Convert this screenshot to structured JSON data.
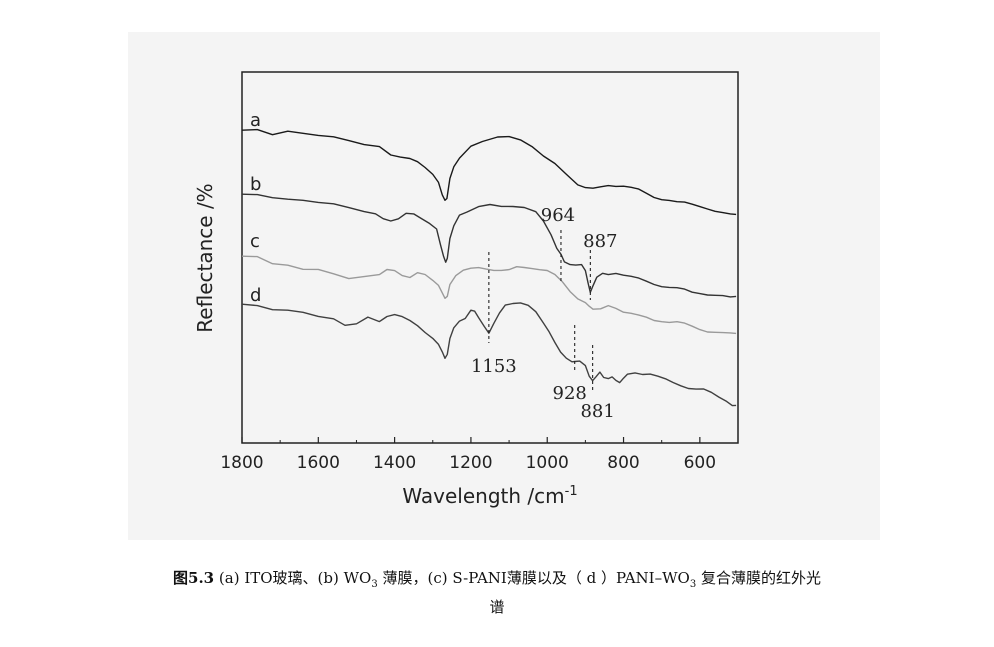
{
  "chart_data": {
    "type": "line",
    "xlabel_main": "Wavelength /cm",
    "xlabel_sup": "-1",
    "ylabel": "Reflectance /%",
    "xlim": [
      1800,
      500
    ],
    "x_reversed": true,
    "x_ticks": [
      1800,
      1600,
      1400,
      1200,
      1000,
      800,
      600
    ],
    "y_ticks": [],
    "grid": false,
    "series": [
      {
        "name": "a",
        "color": "#1a1a1a",
        "points": [
          [
            1800,
            131
          ],
          [
            1760,
            131
          ],
          [
            1720,
            133
          ],
          [
            1680,
            131
          ],
          [
            1640,
            134
          ],
          [
            1600,
            135
          ],
          [
            1560,
            138
          ],
          [
            1520,
            140
          ],
          [
            1480,
            143
          ],
          [
            1440,
            148
          ],
          [
            1410,
            154
          ],
          [
            1385,
            158
          ],
          [
            1360,
            158
          ],
          [
            1340,
            162
          ],
          [
            1320,
            168
          ],
          [
            1300,
            174
          ],
          [
            1285,
            183
          ],
          [
            1275,
            195
          ],
          [
            1268,
            202
          ],
          [
            1263,
            198
          ],
          [
            1255,
            180
          ],
          [
            1245,
            165
          ],
          [
            1230,
            157
          ],
          [
            1200,
            148
          ],
          [
            1170,
            142
          ],
          [
            1130,
            138
          ],
          [
            1100,
            137
          ],
          [
            1070,
            140
          ],
          [
            1040,
            146
          ],
          [
            1010,
            155
          ],
          [
            980,
            165
          ],
          [
            950,
            175
          ],
          [
            920,
            183
          ],
          [
            900,
            187
          ],
          [
            880,
            189
          ],
          [
            860,
            188
          ],
          [
            840,
            186
          ],
          [
            820,
            186
          ],
          [
            800,
            186
          ],
          [
            780,
            188
          ],
          [
            760,
            190
          ],
          [
            740,
            193
          ],
          [
            720,
            196
          ],
          [
            700,
            198
          ],
          [
            680,
            200
          ],
          [
            660,
            203
          ],
          [
            640,
            204
          ],
          [
            620,
            205
          ],
          [
            600,
            206
          ],
          [
            580,
            208
          ],
          [
            560,
            211
          ],
          [
            540,
            213
          ],
          [
            520,
            214
          ],
          [
            505,
            215
          ]
        ]
      },
      {
        "name": "b",
        "color": "#333333",
        "points": [
          [
            1800,
            195
          ],
          [
            1760,
            196
          ],
          [
            1720,
            196
          ],
          [
            1680,
            199
          ],
          [
            1640,
            201
          ],
          [
            1600,
            202
          ],
          [
            1560,
            205
          ],
          [
            1520,
            207
          ],
          [
            1480,
            210
          ],
          [
            1450,
            213
          ],
          [
            1430,
            217
          ],
          [
            1410,
            220
          ],
          [
            1390,
            219
          ],
          [
            1370,
            214
          ],
          [
            1350,
            214
          ],
          [
            1330,
            218
          ],
          [
            1310,
            223
          ],
          [
            1290,
            230
          ],
          [
            1280,
            243
          ],
          [
            1272,
            256
          ],
          [
            1266,
            262
          ],
          [
            1262,
            258
          ],
          [
            1255,
            240
          ],
          [
            1245,
            224
          ],
          [
            1230,
            214
          ],
          [
            1210,
            210
          ],
          [
            1180,
            207
          ],
          [
            1150,
            206
          ],
          [
            1120,
            206
          ],
          [
            1090,
            206
          ],
          [
            1060,
            207
          ],
          [
            1030,
            212
          ],
          [
            1010,
            220
          ],
          [
            990,
            233
          ],
          [
            975,
            247
          ],
          [
            964,
            256
          ],
          [
            955,
            260
          ],
          [
            940,
            263
          ],
          [
            925,
            265
          ],
          [
            910,
            266
          ],
          [
            900,
            270
          ],
          [
            893,
            283
          ],
          [
            887,
            291
          ],
          [
            881,
            288
          ],
          [
            870,
            276
          ],
          [
            855,
            273
          ],
          [
            840,
            275
          ],
          [
            820,
            273
          ],
          [
            800,
            275
          ],
          [
            780,
            277
          ],
          [
            760,
            279
          ],
          [
            740,
            281
          ],
          [
            720,
            283
          ],
          [
            700,
            285
          ],
          [
            680,
            287
          ],
          [
            660,
            289
          ],
          [
            640,
            291
          ],
          [
            620,
            293
          ],
          [
            600,
            293
          ],
          [
            580,
            294
          ],
          [
            560,
            295
          ],
          [
            540,
            296
          ],
          [
            520,
            297
          ],
          [
            505,
            297
          ]
        ]
      },
      {
        "name": "c",
        "color": "#9a9a9a",
        "points": [
          [
            1800,
            257
          ],
          [
            1760,
            258
          ],
          [
            1720,
            262
          ],
          [
            1680,
            265
          ],
          [
            1640,
            270
          ],
          [
            1600,
            269
          ],
          [
            1560,
            275
          ],
          [
            1520,
            278
          ],
          [
            1480,
            275
          ],
          [
            1440,
            276
          ],
          [
            1420,
            271
          ],
          [
            1400,
            271
          ],
          [
            1380,
            275
          ],
          [
            1360,
            277
          ],
          [
            1340,
            273
          ],
          [
            1320,
            275
          ],
          [
            1300,
            280
          ],
          [
            1285,
            286
          ],
          [
            1275,
            293
          ],
          [
            1268,
            300
          ],
          [
            1262,
            296
          ],
          [
            1255,
            286
          ],
          [
            1240,
            276
          ],
          [
            1220,
            272
          ],
          [
            1200,
            270
          ],
          [
            1180,
            268
          ],
          [
            1160,
            268
          ],
          [
            1140,
            269
          ],
          [
            1120,
            270
          ],
          [
            1100,
            270
          ],
          [
            1080,
            267
          ],
          [
            1060,
            267
          ],
          [
            1040,
            268
          ],
          [
            1020,
            270
          ],
          [
            1000,
            272
          ],
          [
            980,
            276
          ],
          [
            960,
            282
          ],
          [
            940,
            290
          ],
          [
            920,
            297
          ],
          [
            900,
            302
          ],
          [
            890,
            306
          ],
          [
            880,
            310
          ],
          [
            860,
            310
          ],
          [
            840,
            306
          ],
          [
            820,
            308
          ],
          [
            800,
            312
          ],
          [
            780,
            314
          ],
          [
            760,
            316
          ],
          [
            740,
            317
          ],
          [
            720,
            319
          ],
          [
            700,
            320
          ],
          [
            680,
            322
          ],
          [
            660,
            323
          ],
          [
            640,
            325
          ],
          [
            620,
            327
          ],
          [
            600,
            329
          ],
          [
            580,
            331
          ],
          [
            560,
            332
          ],
          [
            540,
            333
          ],
          [
            520,
            333
          ],
          [
            505,
            334
          ]
        ]
      },
      {
        "name": "d",
        "color": "#404040",
        "points": [
          [
            1800,
            305
          ],
          [
            1760,
            307
          ],
          [
            1720,
            308
          ],
          [
            1680,
            310
          ],
          [
            1640,
            313
          ],
          [
            1600,
            316
          ],
          [
            1560,
            320
          ],
          [
            1530,
            325
          ],
          [
            1500,
            322
          ],
          [
            1470,
            318
          ],
          [
            1440,
            323
          ],
          [
            1420,
            318
          ],
          [
            1400,
            315
          ],
          [
            1380,
            316
          ],
          [
            1360,
            320
          ],
          [
            1340,
            326
          ],
          [
            1320,
            333
          ],
          [
            1300,
            338
          ],
          [
            1285,
            345
          ],
          [
            1275,
            352
          ],
          [
            1268,
            360
          ],
          [
            1262,
            354
          ],
          [
            1255,
            340
          ],
          [
            1245,
            326
          ],
          [
            1230,
            320
          ],
          [
            1215,
            319
          ],
          [
            1200,
            312
          ],
          [
            1190,
            310
          ],
          [
            1180,
            318
          ],
          [
            1165,
            328
          ],
          [
            1153,
            334
          ],
          [
            1140,
            322
          ],
          [
            1125,
            312
          ],
          [
            1110,
            305
          ],
          [
            1090,
            303
          ],
          [
            1070,
            303
          ],
          [
            1050,
            306
          ],
          [
            1030,
            312
          ],
          [
            1010,
            322
          ],
          [
            995,
            332
          ],
          [
            980,
            344
          ],
          [
            965,
            354
          ],
          [
            950,
            359
          ],
          [
            935,
            361
          ],
          [
            928,
            362
          ],
          [
            915,
            362
          ],
          [
            900,
            365
          ],
          [
            890,
            376
          ],
          [
            881,
            382
          ],
          [
            872,
            375
          ],
          [
            862,
            374
          ],
          [
            852,
            376
          ],
          [
            840,
            379
          ],
          [
            830,
            377
          ],
          [
            820,
            380
          ],
          [
            810,
            383
          ],
          [
            800,
            378
          ],
          [
            790,
            374
          ],
          [
            770,
            372
          ],
          [
            750,
            374
          ],
          [
            730,
            375
          ],
          [
            710,
            378
          ],
          [
            690,
            380
          ],
          [
            670,
            382
          ],
          [
            650,
            384
          ],
          [
            630,
            387
          ],
          [
            610,
            389
          ],
          [
            590,
            390
          ],
          [
            570,
            393
          ],
          [
            550,
            397
          ],
          [
            530,
            401
          ],
          [
            515,
            405
          ],
          [
            505,
            406
          ]
        ]
      }
    ],
    "annotations": [
      {
        "label": "964",
        "x": 964
      },
      {
        "label": "887",
        "x": 887
      },
      {
        "label": "1153",
        "x": 1153
      },
      {
        "label": "928",
        "x": 928
      },
      {
        "label": "881",
        "x": 881
      }
    ]
  },
  "caption": {
    "fig_no": "图5.3",
    "p1": "(a) ITO玻璃、(b) WO",
    "p1_sub": "3",
    "p2": " 薄膜，(c) S-PANI薄膜以及（ d ）PANI–WO",
    "p2_sub": "3",
    "p3": " 复合薄膜的红外光",
    "line2": "谱"
  }
}
